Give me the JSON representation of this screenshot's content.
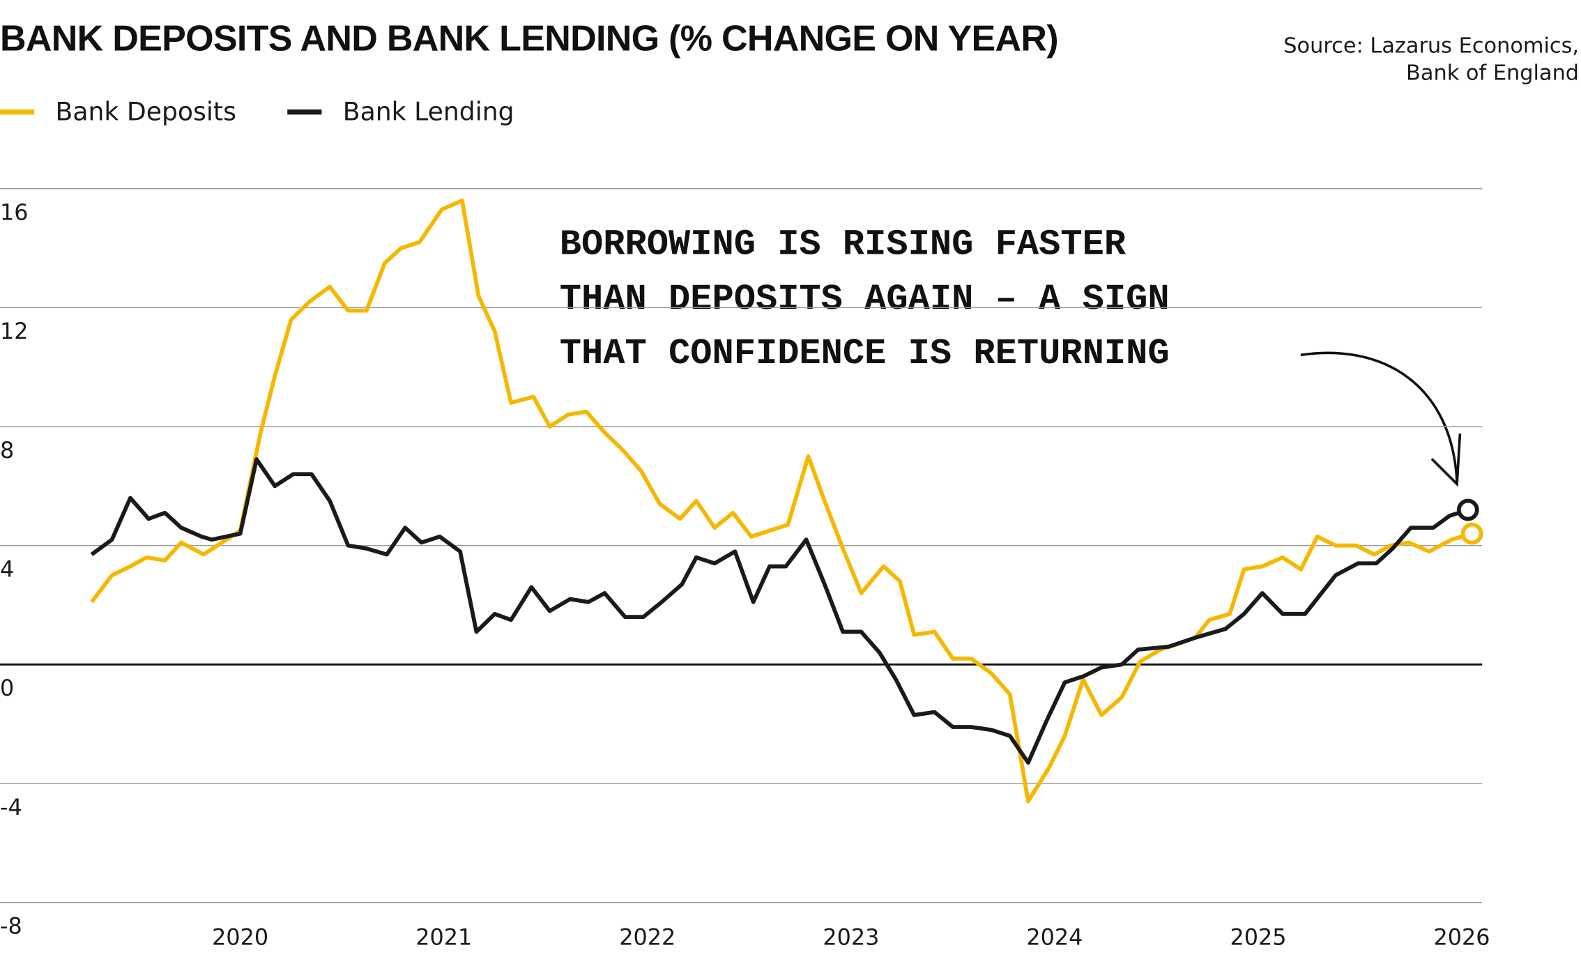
{
  "chart_data": {
    "type": "line",
    "title": "BANK DEPOSITS AND BANK LENDING (% CHANGE ON YEAR)",
    "source": [
      "Source: Lazarus Economics,",
      "Bank of England"
    ],
    "annotation": [
      "BORROWING IS RISING FASTER",
      "THAN DEPOSITS AGAIN – A SIGN",
      "THAT CONFIDENCE IS RETURNING"
    ],
    "xlim": [
      2018.82,
      2026.1
    ],
    "xticks": [
      2020,
      2021,
      2022,
      2023,
      2024,
      2025,
      2026
    ],
    "ylim": [
      -8,
      16
    ],
    "yticks": [
      16,
      12,
      8,
      4,
      0,
      -4,
      -8
    ],
    "grid": true,
    "series": [
      {
        "name": "Bank Deposits",
        "color": "#f5b800",
        "x": [
          2019.27,
          2019.37,
          2019.46,
          2019.54,
          2019.63,
          2019.71,
          2019.82,
          2019.91,
          2020.0,
          2020.1,
          2020.17,
          2020.25,
          2020.34,
          2020.44,
          2020.53,
          2020.62,
          2020.71,
          2020.79,
          2020.88,
          2020.99,
          2021.09,
          2021.17,
          2021.25,
          2021.33,
          2021.44,
          2021.52,
          2021.61,
          2021.7,
          2021.79,
          2021.88,
          2021.97,
          2022.06,
          2022.16,
          2022.24,
          2022.33,
          2022.42,
          2022.51,
          2022.6,
          2022.69,
          2022.79,
          2022.87,
          2022.96,
          2023.05,
          2023.16,
          2023.24,
          2023.31,
          2023.41,
          2023.5,
          2023.59,
          2023.69,
          2023.78,
          2023.87,
          2023.97,
          2024.05,
          2024.14,
          2024.23,
          2024.33,
          2024.42,
          2024.52,
          2024.61,
          2024.69,
          2024.76,
          2024.86,
          2024.93,
          2025.02,
          2025.12,
          2025.21,
          2025.29,
          2025.38,
          2025.48,
          2025.57,
          2025.65,
          2025.74,
          2025.84,
          2025.95,
          2026.05
        ],
        "values": [
          2.1,
          3.0,
          3.3,
          3.6,
          3.5,
          4.1,
          3.7,
          4.1,
          4.5,
          7.8,
          9.7,
          11.6,
          12.2,
          12.7,
          11.9,
          11.9,
          13.5,
          14.0,
          14.2,
          15.3,
          15.6,
          12.4,
          11.2,
          8.8,
          9.0,
          8.0,
          8.4,
          8.5,
          7.8,
          7.2,
          6.5,
          5.4,
          4.9,
          5.5,
          4.6,
          5.1,
          4.3,
          4.5,
          4.7,
          7.0,
          5.5,
          3.9,
          2.4,
          3.3,
          2.8,
          1.0,
          1.1,
          0.2,
          0.2,
          -0.3,
          -1.0,
          -4.6,
          -3.5,
          -2.4,
          -0.5,
          -1.7,
          -1.1,
          0.1,
          0.5,
          0.7,
          0.9,
          1.5,
          1.7,
          3.2,
          3.3,
          3.6,
          3.2,
          4.3,
          4.0,
          4.0,
          3.7,
          4.0,
          4.1,
          3.8,
          4.2,
          4.4
        ]
      },
      {
        "name": "Bank Lending",
        "color": "#1a1a1a",
        "x": [
          2019.27,
          2019.37,
          2019.46,
          2019.55,
          2019.63,
          2019.71,
          2019.81,
          2019.86,
          2020.0,
          2020.08,
          2020.17,
          2020.26,
          2020.35,
          2020.44,
          2020.53,
          2020.62,
          2020.72,
          2020.81,
          2020.89,
          2020.98,
          2021.08,
          2021.16,
          2021.25,
          2021.33,
          2021.43,
          2021.52,
          2021.62,
          2021.71,
          2021.79,
          2021.89,
          2021.98,
          2022.07,
          2022.17,
          2022.24,
          2022.33,
          2022.43,
          2022.52,
          2022.6,
          2022.68,
          2022.78,
          2022.87,
          2022.96,
          2023.05,
          2023.14,
          2023.22,
          2023.31,
          2023.41,
          2023.5,
          2023.59,
          2023.69,
          2023.78,
          2023.87,
          2023.96,
          2024.05,
          2024.14,
          2024.23,
          2024.33,
          2024.41,
          2024.56,
          2024.69,
          2024.84,
          2024.93,
          2025.02,
          2025.12,
          2025.23,
          2025.38,
          2025.49,
          2025.58,
          2025.66,
          2025.75,
          2025.86,
          2025.94,
          2026.03
        ],
        "values": [
          3.7,
          4.2,
          5.6,
          4.9,
          5.1,
          4.6,
          4.3,
          4.2,
          4.4,
          6.9,
          6.0,
          6.4,
          6.4,
          5.5,
          4.0,
          3.9,
          3.7,
          4.6,
          4.1,
          4.3,
          3.8,
          1.1,
          1.7,
          1.5,
          2.6,
          1.8,
          2.2,
          2.1,
          2.4,
          1.6,
          1.6,
          2.1,
          2.7,
          3.6,
          3.4,
          3.8,
          2.1,
          3.3,
          3.3,
          4.2,
          2.7,
          1.1,
          1.1,
          0.4,
          -0.5,
          -1.7,
          -1.6,
          -2.1,
          -2.1,
          -2.2,
          -2.4,
          -3.3,
          -1.9,
          -0.6,
          -0.4,
          -0.1,
          0,
          0.5,
          0.6,
          0.9,
          1.2,
          1.7,
          2.4,
          1.7,
          1.7,
          3.0,
          3.4,
          3.4,
          3.9,
          4.6,
          4.6,
          5.0,
          5.2
        ]
      }
    ]
  }
}
